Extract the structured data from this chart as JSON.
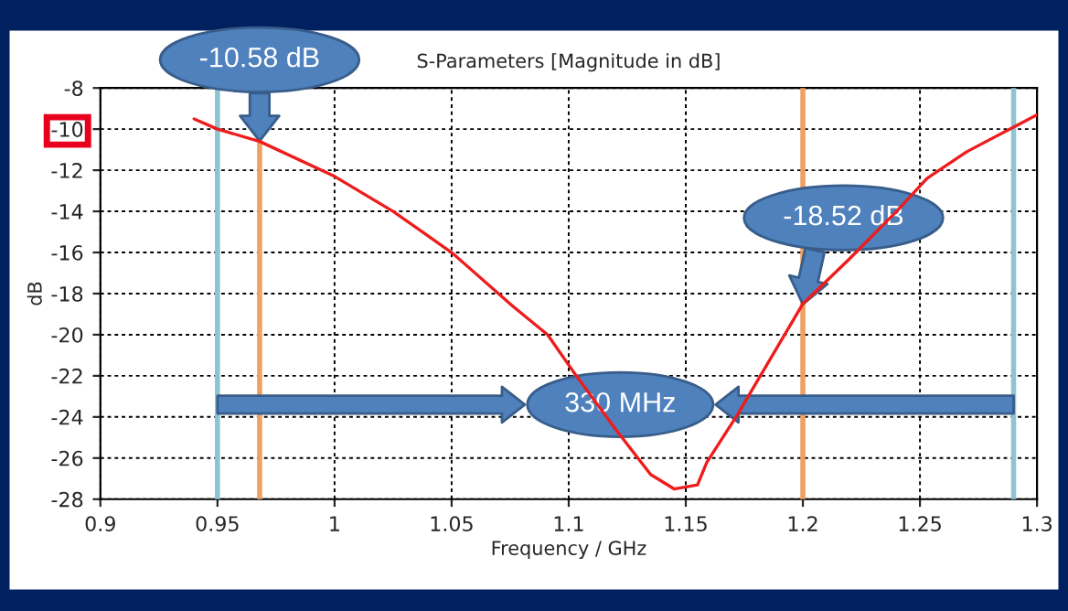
{
  "chart_data": {
    "type": "line",
    "title": "S-Parameters [Magnitude in dB]",
    "xlabel": "Frequency / GHz",
    "ylabel": "dB",
    "x": [
      0.94,
      0.95,
      0.968,
      1.0,
      1.025,
      1.05,
      1.076,
      1.091,
      1.102,
      1.12,
      1.135,
      1.145,
      1.155,
      1.159,
      1.172,
      1.2,
      1.22,
      1.24,
      1.253,
      1.27,
      1.28,
      1.29,
      1.3
    ],
    "series": [
      {
        "color": "#ee1c1c",
        "values": [
          -9.5,
          -10.0,
          -10.6,
          -12.3,
          -14.0,
          -16.0,
          -18.6,
          -20.0,
          -21.8,
          -24.6,
          -26.8,
          -27.5,
          -27.3,
          -26.2,
          -23.9,
          -18.5,
          -16.3,
          -14.0,
          -12.4,
          -11.1,
          -10.5,
          -9.9,
          -9.3
        ]
      }
    ],
    "xlim": [
      0.9,
      1.3
    ],
    "xticks": [
      0.9,
      0.95,
      1,
      1.05,
      1.1,
      1.15,
      1.2,
      1.25,
      1.3
    ],
    "ylim": [
      -28,
      -8
    ],
    "yticks": [
      -28,
      -26,
      -24,
      -22,
      -20,
      -18,
      -16,
      -14,
      -12,
      -10,
      -8
    ],
    "grid": true,
    "legend": false,
    "marker": "none",
    "line_style": "solid",
    "ref_lines": [
      {
        "axis": "x",
        "value": 0.95,
        "color": "#8fc3d1"
      },
      {
        "axis": "x",
        "value": 1.29,
        "color": "#8fc3d1"
      },
      {
        "axis": "x",
        "value": 0.968,
        "color": "#f0a060"
      },
      {
        "axis": "x",
        "value": 1.2,
        "color": "#f0a060"
      }
    ],
    "annotations": [
      {
        "text": "-10.58 dB",
        "x": 0.968,
        "y": -10.58
      },
      {
        "text": "-18.52 dB",
        "x": 1.2,
        "y": -18.52
      },
      "330 MHz"
    ]
  }
}
